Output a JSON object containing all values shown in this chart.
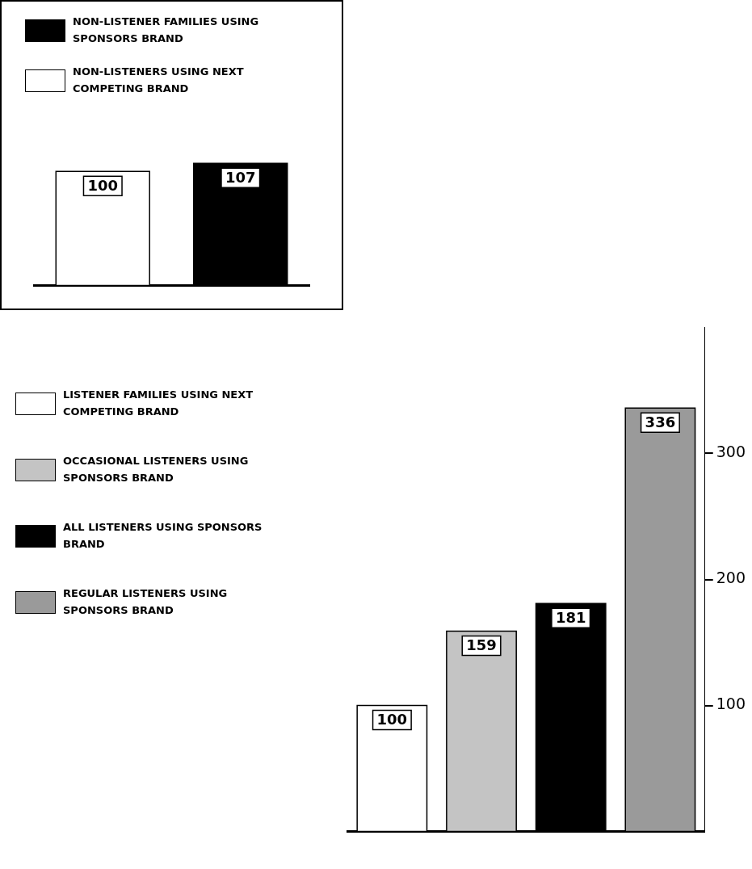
{
  "chart_data": [
    {
      "type": "bar",
      "categories": [
        null,
        null
      ],
      "legend": "top left",
      "data_labels": true,
      "stacked": true,
      "series": [
        {
          "name": "NON-LISTENER FAMILIES USING SPONSORS BRAND",
          "color": "#000000",
          "values": [
            null,
            107
          ]
        },
        {
          "name": "NON-LISTENERS USING NEXT COMPETING BRAND",
          "color": "#ffffff",
          "values": [
            100,
            null
          ]
        }
      ]
    },
    {
      "type": "bar",
      "categories": [
        null,
        null,
        null,
        null
      ],
      "legend": "left",
      "data_labels": true,
      "stacked": true,
      "ylim": [
        0,
        400
      ],
      "yticks": [
        100,
        200,
        300
      ],
      "grid": false,
      "tick_labels": "y",
      "series": [
        {
          "name": "LISTENER FAMILIES USING NEXT COMPETING BRAND",
          "color": "#ffffff",
          "values": [
            100,
            null,
            null,
            null
          ]
        },
        {
          "name": "OCCASIONAL LISTENERS USING SPONSORS BRAND",
          "color": "#c4c4c4",
          "values": [
            null,
            159,
            null,
            null
          ]
        },
        {
          "name": "ALL LISTENERS USING SPONSORS BRAND",
          "color": "#000000",
          "values": [
            null,
            null,
            181,
            null
          ]
        },
        {
          "name": "REGULAR LISTENERS USING SPONSORS BRAND",
          "color": "#9a9a9a",
          "values": [
            null,
            null,
            null,
            336
          ]
        }
      ]
    }
  ]
}
